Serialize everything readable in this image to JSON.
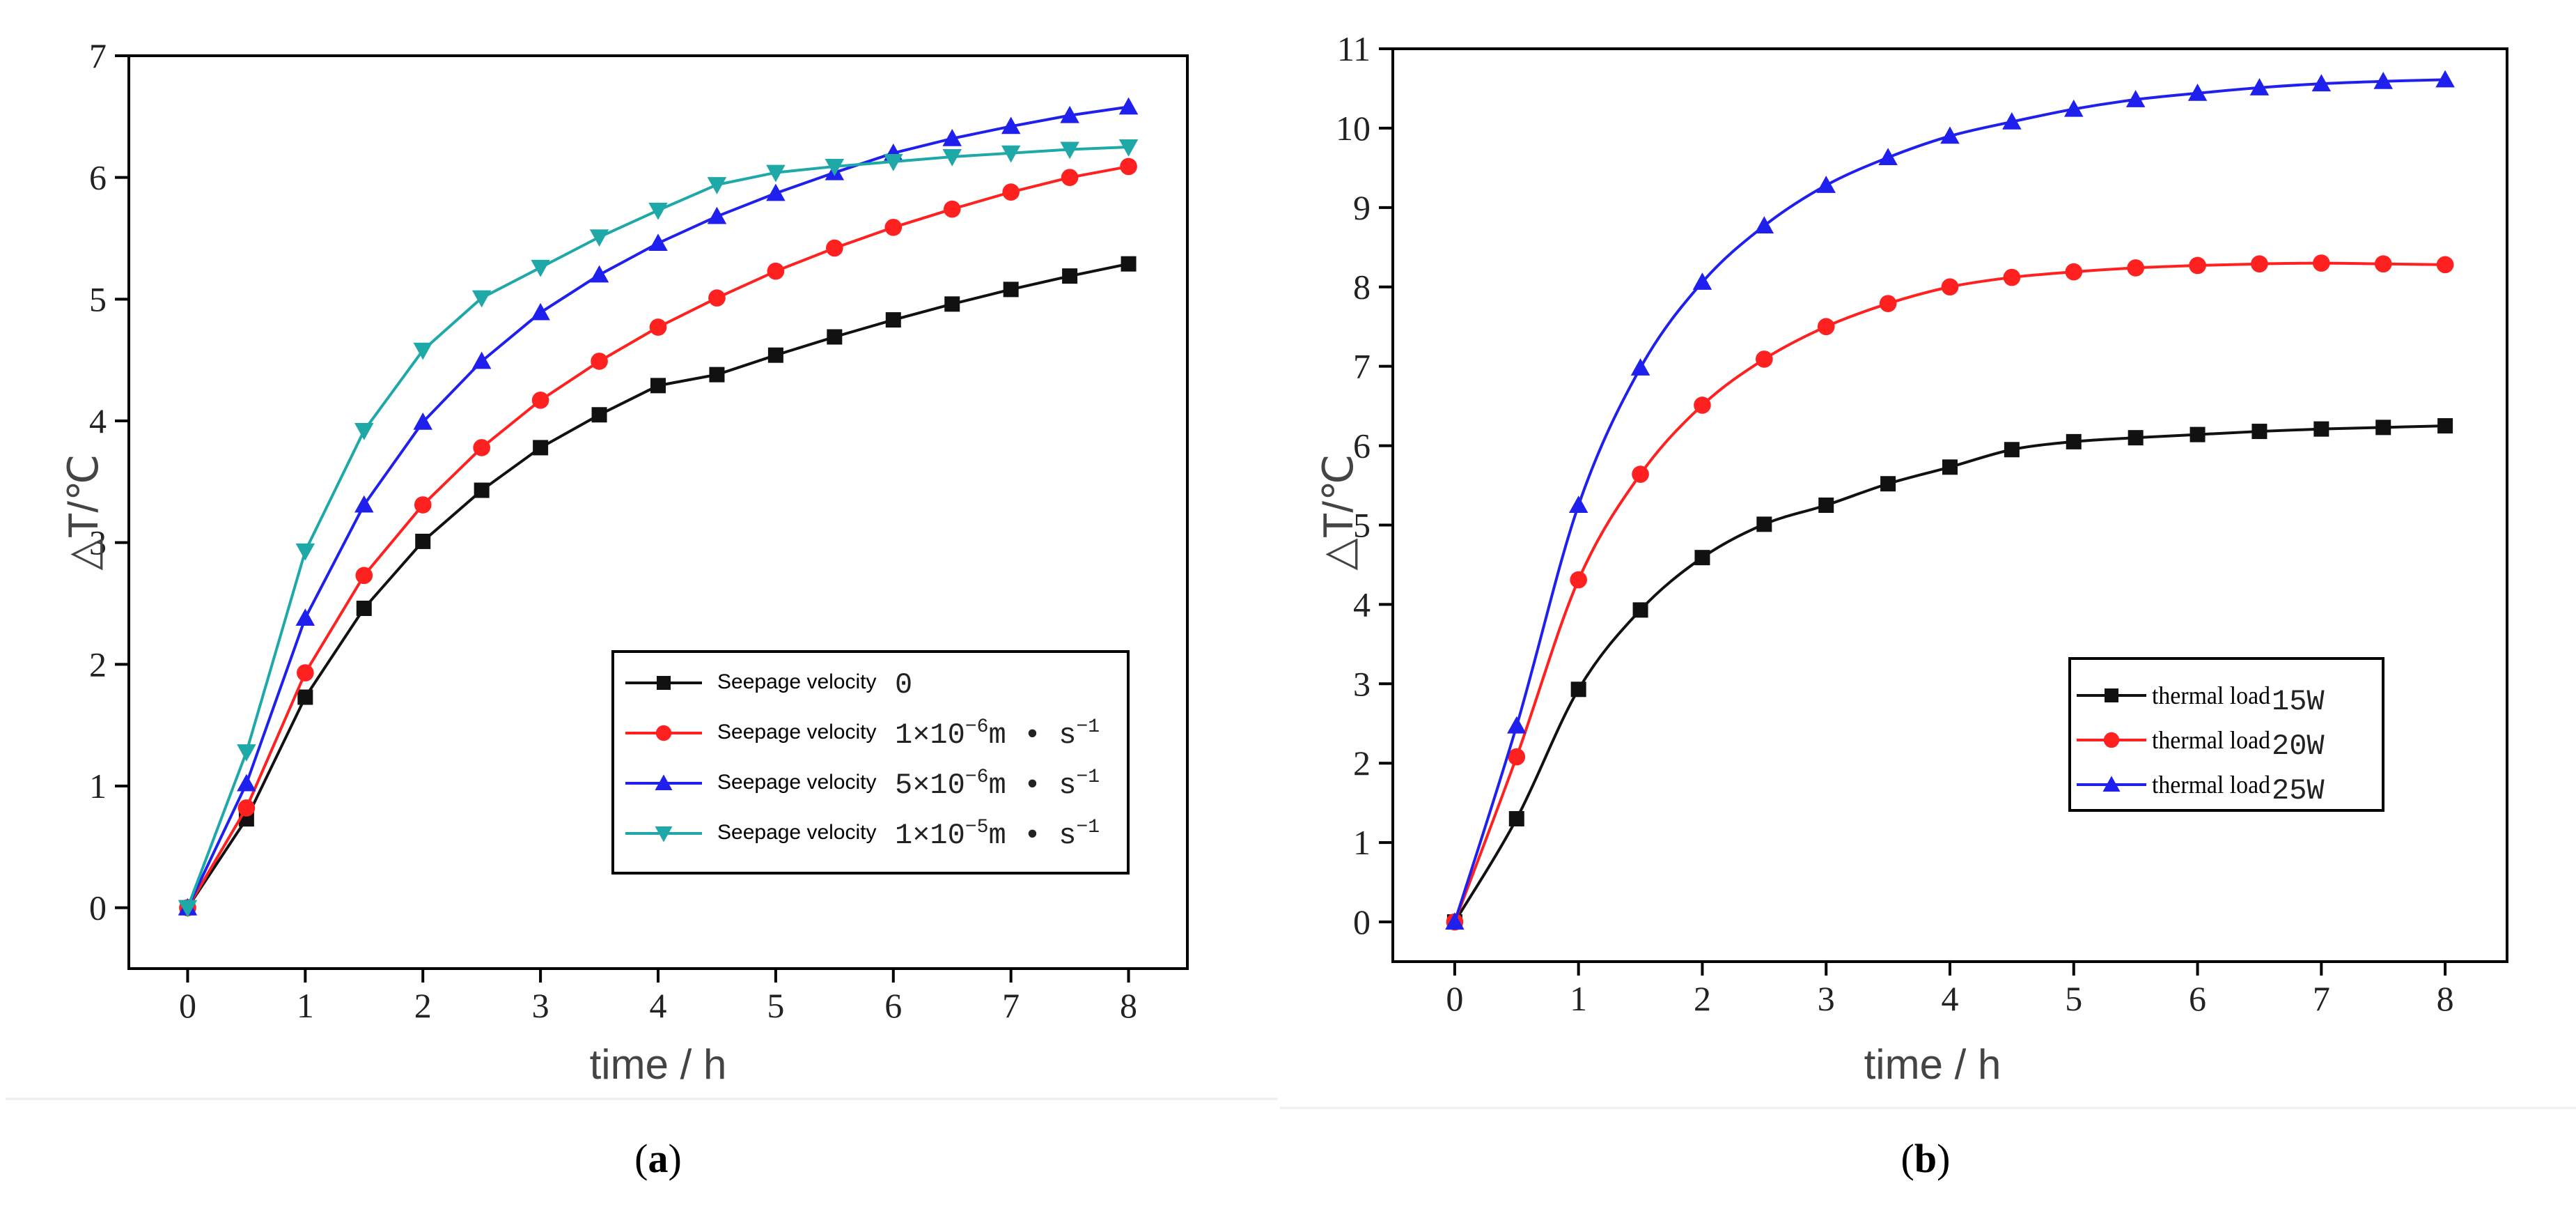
{
  "chart_data": [
    {
      "type": "line",
      "panel_label": "a",
      "xlabel": "time / h",
      "ylabel": "△T/℃",
      "xlim": [
        -0.5,
        8.5
      ],
      "ylim": [
        -0.5,
        7
      ],
      "xticks": [
        0,
        1,
        2,
        3,
        4,
        5,
        6,
        7,
        8
      ],
      "xtick_labels": [
        "0",
        "1",
        "2",
        "3",
        "4",
        "5",
        "6",
        "7",
        "8"
      ],
      "yticks": [
        0,
        1,
        2,
        3,
        4,
        5,
        6,
        7
      ],
      "ytick_labels": [
        "0",
        "1",
        "2",
        "3",
        "4",
        "5",
        "6",
        "7"
      ],
      "legend_position": "bottom-right",
      "x": [
        0,
        0.5,
        1,
        1.5,
        2,
        2.5,
        3,
        3.5,
        4,
        4.5,
        5,
        5.5,
        6,
        6.5,
        7,
        7.5,
        8
      ],
      "series": [
        {
          "name": "Seepage velocity 0",
          "legend_prefix": "Seepage velocity",
          "legend_base": "0",
          "legend_sup1": "",
          "legend_mid": "",
          "legend_sup2": "",
          "color": "#111111",
          "marker": "square",
          "values": [
            0,
            0.73,
            1.73,
            2.46,
            3.01,
            3.43,
            3.78,
            4.05,
            4.29,
            4.38,
            4.54,
            4.69,
            4.83,
            4.96,
            5.08,
            5.19,
            5.29
          ]
        },
        {
          "name": "Seepage velocity 1×10⁻⁶m•s⁻¹",
          "legend_prefix": "Seepage velocity",
          "legend_base": "1×10",
          "legend_sup1": "−6",
          "legend_mid": "m • s",
          "legend_sup2": "−1",
          "color": "#ff2020",
          "marker": "circle",
          "values": [
            0,
            0.82,
            1.93,
            2.73,
            3.31,
            3.78,
            4.17,
            4.49,
            4.77,
            5.01,
            5.23,
            5.42,
            5.59,
            5.74,
            5.88,
            6.0,
            6.09
          ]
        },
        {
          "name": "Seepage velocity 5×10⁻⁶m•s⁻¹",
          "legend_prefix": "Seepage velocity",
          "legend_base": "5×10",
          "legend_sup1": "−6",
          "legend_mid": "m • s",
          "legend_sup2": "−1",
          "color": "#2020ee",
          "marker": "triangle-up",
          "values": [
            0,
            1.02,
            2.38,
            3.31,
            3.99,
            4.49,
            4.89,
            5.2,
            5.46,
            5.68,
            5.87,
            6.04,
            6.2,
            6.32,
            6.42,
            6.51,
            6.58
          ]
        },
        {
          "name": "Seepage velocity 1×10⁻⁵m•s⁻¹",
          "legend_prefix": "Seepage velocity",
          "legend_base": "1×10",
          "legend_sup1": "−5",
          "legend_mid": "m • s",
          "legend_sup2": "−1",
          "color": "#1fa8a8",
          "marker": "triangle-down",
          "values": [
            0,
            1.28,
            2.93,
            3.92,
            4.58,
            5.01,
            5.26,
            5.51,
            5.73,
            5.94,
            6.04,
            6.09,
            6.13,
            6.17,
            6.2,
            6.23,
            6.25
          ]
        }
      ]
    },
    {
      "type": "line",
      "panel_label": "b",
      "xlabel": "time / h",
      "ylabel": "△T/℃",
      "xlim": [
        -0.5,
        8.5
      ],
      "ylim": [
        -0.5,
        11
      ],
      "xticks": [
        0,
        1,
        2,
        3,
        4,
        5,
        6,
        7,
        8
      ],
      "xtick_labels": [
        "0",
        "1",
        "2",
        "3",
        "4",
        "5",
        "6",
        "7",
        "8"
      ],
      "yticks": [
        0,
        1,
        2,
        3,
        4,
        5,
        6,
        7,
        8,
        9,
        10,
        11
      ],
      "ytick_labels": [
        "0",
        "1",
        "2",
        "3",
        "4",
        "5",
        "6",
        "7",
        "8",
        "9",
        "10",
        "11"
      ],
      "legend_position": "bottom-right",
      "x": [
        0,
        0.5,
        1,
        1.5,
        2,
        2.5,
        3,
        3.5,
        4,
        4.5,
        5,
        5.5,
        6,
        6.5,
        7,
        7.5,
        8
      ],
      "series": [
        {
          "name": "thermal load 15W",
          "legend_prefix": "thermal load",
          "legend_value": "15W",
          "color": "#111111",
          "marker": "square",
          "values": [
            0,
            1.3,
            2.93,
            3.93,
            4.59,
            5.01,
            5.25,
            5.52,
            5.73,
            5.95,
            6.05,
            6.1,
            6.14,
            6.18,
            6.21,
            6.23,
            6.25
          ]
        },
        {
          "name": "thermal load 20W",
          "legend_prefix": "thermal load",
          "legend_value": "20W",
          "color": "#ff2020",
          "marker": "circle",
          "values": [
            0,
            2.08,
            4.31,
            5.64,
            6.51,
            7.09,
            7.5,
            7.79,
            8.0,
            8.12,
            8.19,
            8.24,
            8.27,
            8.29,
            8.3,
            8.29,
            8.28
          ]
        },
        {
          "name": "thermal load 25W",
          "legend_prefix": "thermal load",
          "legend_value": "25W",
          "color": "#2020ee",
          "marker": "triangle-up",
          "values": [
            0,
            2.47,
            5.25,
            6.98,
            8.06,
            8.77,
            9.28,
            9.63,
            9.9,
            10.08,
            10.24,
            10.36,
            10.44,
            10.51,
            10.56,
            10.59,
            10.61
          ]
        }
      ]
    }
  ]
}
